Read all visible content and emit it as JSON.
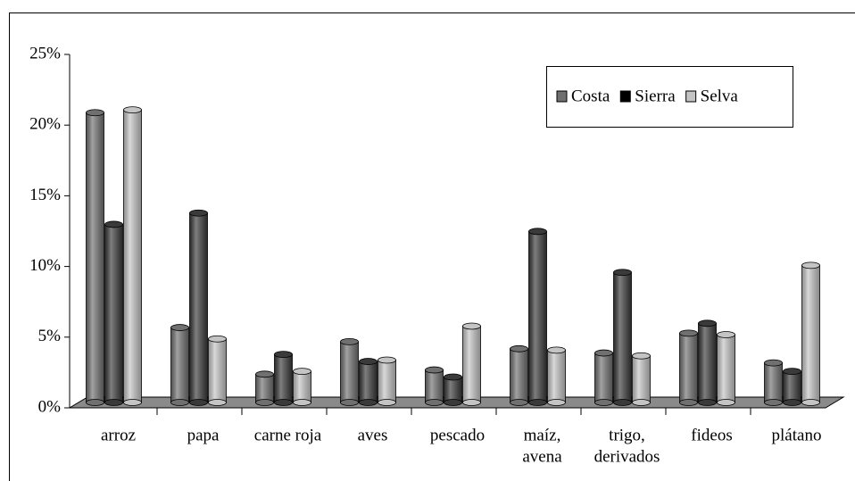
{
  "chart_data": {
    "type": "bar3d",
    "categories": [
      "arroz",
      "papa",
      "carne roja",
      "aves",
      "pescado",
      [
        "maíz,",
        "avena"
      ],
      [
        "trigo,",
        "derivados"
      ],
      "fideos",
      "plátano"
    ],
    "series": [
      {
        "name": "Costa",
        "color": "#707070",
        "values": [
          20.5,
          5.3,
          2.0,
          4.3,
          2.3,
          3.8,
          3.5,
          4.9,
          2.8
        ]
      },
      {
        "name": "Sierra",
        "color": "#3a3a3a",
        "values": [
          12.6,
          13.4,
          3.4,
          2.9,
          1.8,
          12.1,
          9.2,
          5.6,
          2.2
        ]
      },
      {
        "name": "Selva",
        "color": "#c4c4c4",
        "values": [
          20.7,
          4.5,
          2.2,
          3.0,
          5.4,
          3.7,
          3.3,
          4.8,
          9.7
        ]
      }
    ],
    "ylim": [
      0,
      25
    ],
    "yticks": [
      {
        "value": 0,
        "label": "0%"
      },
      {
        "value": 5,
        "label": "5%"
      },
      {
        "value": 10,
        "label": "10%"
      },
      {
        "value": 15,
        "label": "15%"
      },
      {
        "value": 20,
        "label": "20%"
      },
      {
        "value": 25,
        "label": "25%"
      }
    ],
    "legend": "top-right"
  }
}
